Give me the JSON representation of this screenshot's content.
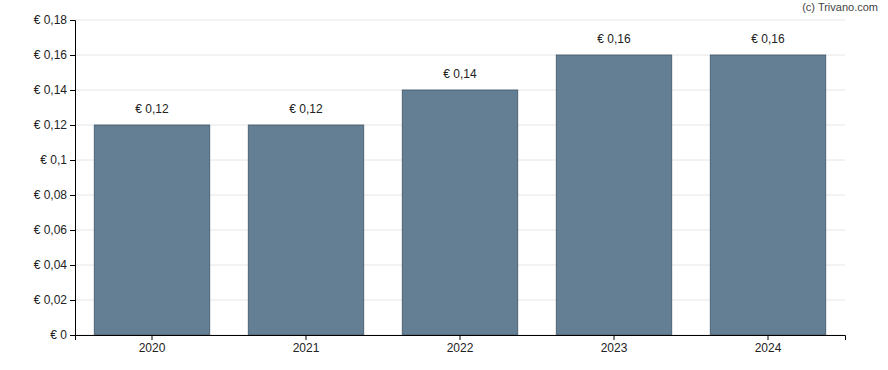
{
  "chart_data": {
    "type": "bar",
    "categories": [
      "2020",
      "2021",
      "2022",
      "2023",
      "2024"
    ],
    "values": [
      0.12,
      0.12,
      0.14,
      0.16,
      0.16
    ],
    "value_labels": [
      "€ 0,12",
      "€ 0,12",
      "€ 0,14",
      "€ 0,16",
      "€ 0,16"
    ],
    "color": "#647f93",
    "ylim": [
      0,
      0.18
    ],
    "yticks": [
      {
        "value": 0,
        "label": "€ 0"
      },
      {
        "value": 0.02,
        "label": "€ 0,02"
      },
      {
        "value": 0.04,
        "label": "€ 0,04"
      },
      {
        "value": 0.06,
        "label": "€ 0,06"
      },
      {
        "value": 0.08,
        "label": "€ 0,08"
      },
      {
        "value": 0.1,
        "label": "€ 0,1"
      },
      {
        "value": 0.12,
        "label": "€ 0,12"
      },
      {
        "value": 0.14,
        "label": "€ 0,14"
      },
      {
        "value": 0.16,
        "label": "€ 0,16"
      },
      {
        "value": 0.18,
        "label": "€ 0,18"
      }
    ],
    "grid": true,
    "data_labels": true,
    "annotations": [
      "(c) Trivano.com"
    ]
  }
}
